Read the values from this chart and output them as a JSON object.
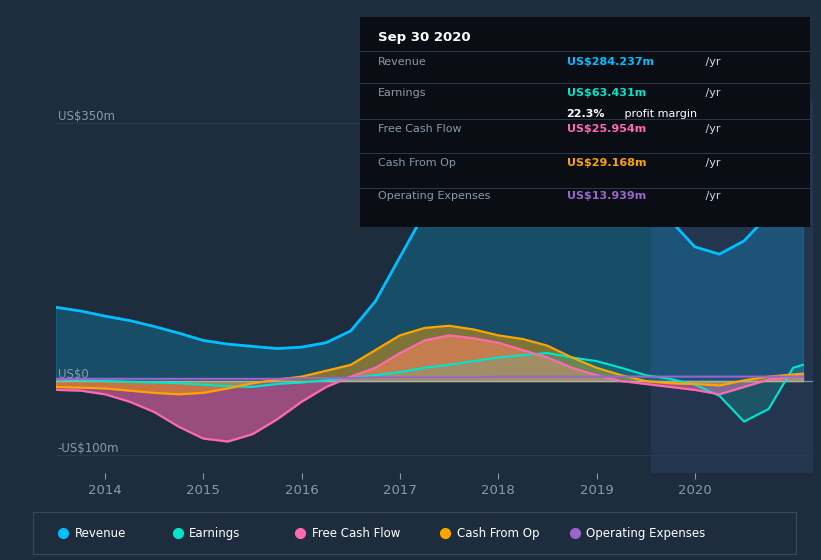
{
  "bg_color": "#1e2d3d",
  "plot_bg_color": "#1e2d3d",
  "shaded_bg_color": "#243550",
  "title_box_bg": "#0a0e14",
  "zero_line_color": "#aabbcc",
  "ylabel_us350": "US$350m",
  "ylabel_us0": "US$0",
  "ylabel_usneg100": "-US$100m",
  "xlim": [
    2013.5,
    2021.2
  ],
  "ylim": [
    -125,
    380
  ],
  "years": [
    2014,
    2015,
    2016,
    2017,
    2018,
    2019,
    2020
  ],
  "shaded_start": 2019.55,
  "revenue_color": "#00bfff",
  "earnings_color": "#00e5cc",
  "fcf_color": "#ff69b4",
  "cashfromop_color": "#ffa500",
  "opex_color": "#9966cc",
  "revenue_x": [
    2013.5,
    2013.75,
    2014.0,
    2014.25,
    2014.5,
    2014.75,
    2015.0,
    2015.25,
    2015.5,
    2015.75,
    2016.0,
    2016.25,
    2016.5,
    2016.75,
    2017.0,
    2017.25,
    2017.5,
    2017.75,
    2018.0,
    2018.25,
    2018.5,
    2018.75,
    2019.0,
    2019.25,
    2019.5,
    2019.75,
    2020.0,
    2020.25,
    2020.5,
    2020.75,
    2021.0,
    2021.1
  ],
  "revenue_y": [
    100,
    95,
    88,
    82,
    74,
    65,
    55,
    50,
    47,
    44,
    46,
    52,
    68,
    108,
    168,
    228,
    278,
    308,
    328,
    338,
    338,
    323,
    308,
    288,
    258,
    218,
    182,
    172,
    190,
    225,
    260,
    268
  ],
  "earnings_x": [
    2013.5,
    2013.75,
    2014.0,
    2014.25,
    2014.5,
    2014.75,
    2015.0,
    2015.25,
    2015.5,
    2015.75,
    2016.0,
    2016.25,
    2016.5,
    2016.75,
    2017.0,
    2017.25,
    2017.5,
    2017.75,
    2018.0,
    2018.25,
    2018.5,
    2018.75,
    2019.0,
    2019.25,
    2019.5,
    2019.75,
    2020.0,
    2020.25,
    2020.5,
    2020.75,
    2021.0,
    2021.1
  ],
  "earnings_y": [
    2,
    1,
    0,
    -1,
    -2,
    -3,
    -5,
    -7,
    -8,
    -4,
    -2,
    1,
    4,
    8,
    12,
    18,
    22,
    27,
    32,
    35,
    38,
    32,
    27,
    18,
    8,
    3,
    -5,
    -20,
    -55,
    -38,
    18,
    22
  ],
  "fcf_x": [
    2013.5,
    2013.75,
    2014.0,
    2014.25,
    2014.5,
    2014.75,
    2015.0,
    2015.25,
    2015.5,
    2015.75,
    2016.0,
    2016.25,
    2016.5,
    2016.75,
    2017.0,
    2017.25,
    2017.5,
    2017.75,
    2018.0,
    2018.25,
    2018.5,
    2018.75,
    2019.0,
    2019.25,
    2019.5,
    2019.75,
    2020.0,
    2020.25,
    2020.5,
    2020.75,
    2021.0,
    2021.1
  ],
  "fcf_y": [
    -12,
    -13,
    -18,
    -28,
    -42,
    -62,
    -78,
    -82,
    -72,
    -52,
    -28,
    -8,
    6,
    18,
    38,
    55,
    62,
    58,
    52,
    42,
    32,
    18,
    8,
    0,
    -4,
    -8,
    -12,
    -18,
    -8,
    2,
    6,
    8
  ],
  "cashfromop_x": [
    2013.5,
    2013.75,
    2014.0,
    2014.25,
    2014.5,
    2014.75,
    2015.0,
    2015.25,
    2015.5,
    2015.75,
    2016.0,
    2016.25,
    2016.5,
    2016.75,
    2017.0,
    2017.25,
    2017.5,
    2017.75,
    2018.0,
    2018.25,
    2018.5,
    2018.75,
    2019.0,
    2019.25,
    2019.5,
    2019.75,
    2020.0,
    2020.25,
    2020.5,
    2020.75,
    2021.0,
    2021.1
  ],
  "cashfromop_y": [
    -8,
    -9,
    -10,
    -13,
    -16,
    -18,
    -16,
    -10,
    -3,
    2,
    6,
    14,
    22,
    42,
    62,
    72,
    75,
    70,
    62,
    57,
    48,
    32,
    18,
    8,
    0,
    -3,
    -4,
    -6,
    1,
    6,
    9,
    10
  ],
  "opex_x": [
    2013.5,
    2013.75,
    2014.0,
    2014.25,
    2014.5,
    2014.75,
    2015.0,
    2015.25,
    2015.5,
    2015.75,
    2016.0,
    2016.25,
    2016.5,
    2016.75,
    2017.0,
    2017.25,
    2017.5,
    2017.75,
    2018.0,
    2018.25,
    2018.5,
    2018.75,
    2019.0,
    2019.25,
    2019.5,
    2019.75,
    2020.0,
    2020.25,
    2020.5,
    2020.75,
    2021.0,
    2021.1
  ],
  "opex_y": [
    3,
    3,
    3,
    3,
    3,
    3,
    3,
    3,
    3,
    3,
    4,
    4,
    4,
    5,
    5,
    5,
    5,
    5,
    6,
    6,
    6,
    6,
    6,
    6,
    6,
    6,
    6,
    6,
    6,
    6,
    6,
    6
  ],
  "legend_items": [
    {
      "label": "Revenue",
      "color": "#00bfff"
    },
    {
      "label": "Earnings",
      "color": "#00e5cc"
    },
    {
      "label": "Free Cash Flow",
      "color": "#ff69b4"
    },
    {
      "label": "Cash From Op",
      "color": "#ffa500"
    },
    {
      "label": "Operating Expenses",
      "color": "#9966cc"
    }
  ],
  "info_box": {
    "date": "Sep 30 2020",
    "rows": [
      {
        "label": "Revenue",
        "value": "US$284.237m",
        "suffix": " /yr",
        "value_color": "#00bfff",
        "label_color": "#8899aa",
        "separator_above": true,
        "extra": null
      },
      {
        "label": "Earnings",
        "value": "US$63.431m",
        "suffix": " /yr",
        "value_color": "#00e5cc",
        "label_color": "#8899aa",
        "separator_above": true,
        "extra": {
          "text": "22.3%",
          "suffix": " profit margin",
          "text_color": "#ffffff",
          "suffix_color": "#ffffff"
        }
      },
      {
        "label": "Free Cash Flow",
        "value": "US$25.954m",
        "suffix": " /yr",
        "value_color": "#ff69b4",
        "label_color": "#8899aa",
        "separator_above": true,
        "extra": null
      },
      {
        "label": "Cash From Op",
        "value": "US$29.168m",
        "suffix": " /yr",
        "value_color": "#ffa500",
        "label_color": "#8899aa",
        "separator_above": true,
        "extra": null
      },
      {
        "label": "Operating Expenses",
        "value": "US$13.939m",
        "suffix": " /yr",
        "value_color": "#9966cc",
        "label_color": "#8899aa",
        "separator_above": true,
        "extra": null
      }
    ]
  }
}
